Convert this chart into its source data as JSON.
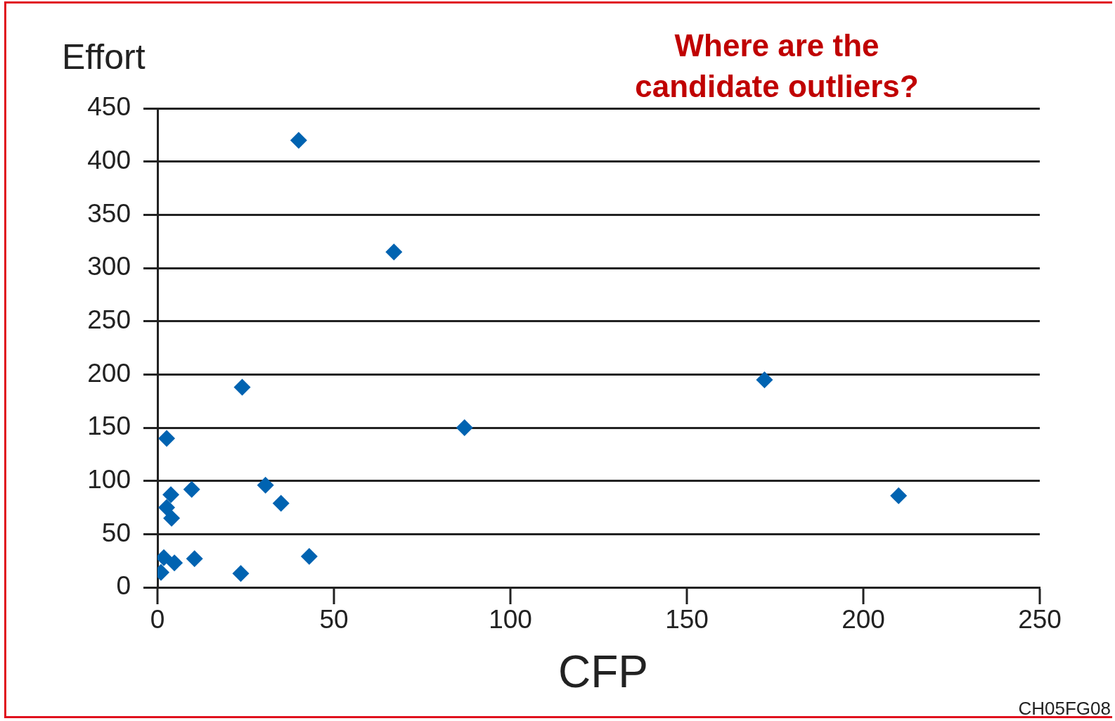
{
  "chart_data": {
    "type": "scatter",
    "title": "Where are the candidate outliers?",
    "xlabel": "CFP",
    "ylabel": "Effort",
    "annotations": [
      "CH05FG08"
    ],
    "x": [
      40,
      67,
      172,
      87,
      210,
      24,
      2.6,
      3.8,
      9.7,
      30.6,
      35,
      2.6,
      4,
      1.8,
      4.8,
      10.5,
      1,
      23.6,
      43
    ],
    "values": [
      420,
      315,
      195,
      150,
      86,
      188,
      140,
      87,
      92,
      96,
      79,
      75,
      65,
      28,
      23,
      27,
      14,
      13,
      29
    ],
    "color": "#0063b1",
    "marker": "diamond",
    "xlim": [
      0,
      250
    ],
    "xticks": [
      0,
      50,
      100,
      150,
      200,
      250
    ],
    "ylim": [
      0,
      450
    ],
    "yticks": [
      0,
      50,
      100,
      150,
      200,
      250,
      300,
      350,
      400,
      450
    ],
    "grid": "y",
    "legend": false
  }
}
